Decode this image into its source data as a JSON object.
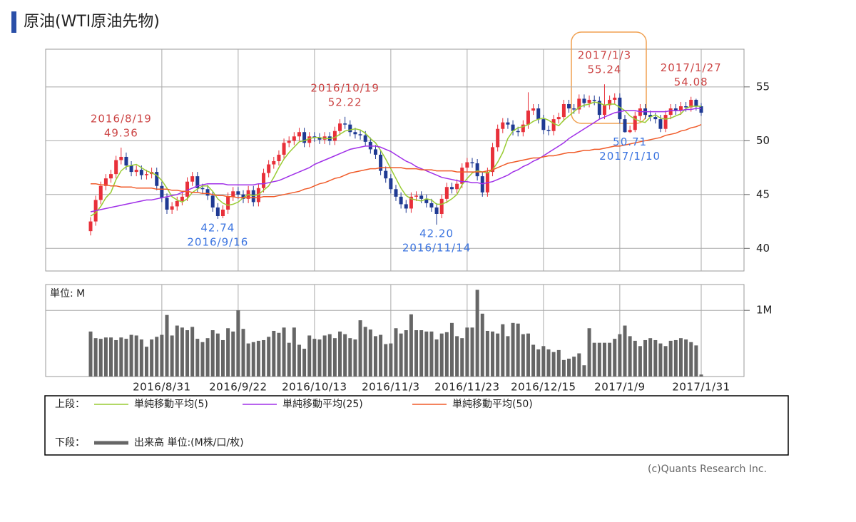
{
  "title": "原油(WTI原油先物)",
  "chart_data": [
    {
      "type": "candlestick",
      "up_color": "#e8303a",
      "down_color": "#1f3a93",
      "ylim": [
        37.9,
        58.5
      ],
      "yticks": [
        40,
        45,
        50,
        55
      ],
      "grid": true,
      "open": [
        41.6,
        42.5,
        44.5,
        45.8,
        46.5,
        46.9,
        48.2,
        48.5,
        47.7,
        47.1,
        47.3,
        46.8,
        46.9,
        47.1,
        45.8,
        44.7,
        43.6,
        43.9,
        44.4,
        44.8,
        46.2,
        46.7,
        45.6,
        45.5,
        44.9,
        43.8,
        43.0,
        43.6,
        44.8,
        45.3,
        45.0,
        44.6,
        45.4,
        44.3,
        45.6,
        47.0,
        47.8,
        48.1,
        48.7,
        49.8,
        50.0,
        50.4,
        50.8,
        49.8,
        50.4,
        50.3,
        50.1,
        50.4,
        50.0,
        50.9,
        51.6,
        51.5,
        50.8,
        50.6,
        50.5,
        49.9,
        49.2,
        48.7,
        47.2,
        46.5,
        45.5,
        44.8,
        44.1,
        43.7,
        44.8,
        44.9,
        44.6,
        44.2,
        43.8,
        43.2,
        44.6,
        45.7,
        45.5,
        46.0,
        47.5,
        48.0,
        47.9,
        46.7,
        45.2,
        47.1,
        49.4,
        51.1,
        51.7,
        51.5,
        50.9,
        50.8,
        51.5,
        52.8,
        53.0,
        52.0,
        51.0,
        50.9,
        52.0,
        52.2,
        53.4,
        53.0,
        52.9,
        53.9,
        53.5,
        53.8,
        53.7,
        52.4,
        53.3,
        53.8,
        54.0,
        52.0,
        50.8,
        51.0,
        52.3,
        53.0,
        52.4,
        52.2,
        52.0,
        51.1,
        52.4,
        53.0,
        52.8,
        53.2,
        53.1,
        53.8,
        53.2
      ],
      "high": [
        42.9,
        44.9,
        46.2,
        46.9,
        47.3,
        48.6,
        49.36,
        48.9,
        48.1,
        47.7,
        47.7,
        47.3,
        47.5,
        47.5,
        46.2,
        45.1,
        44.3,
        44.8,
        45.2,
        46.6,
        47.1,
        47.1,
        46.0,
        45.9,
        45.3,
        44.2,
        44.0,
        45.2,
        45.7,
        45.7,
        45.4,
        45.8,
        45.8,
        46.0,
        47.4,
        48.2,
        48.5,
        49.1,
        50.2,
        50.4,
        50.8,
        51.2,
        51.2,
        50.8,
        50.8,
        50.7,
        50.8,
        50.8,
        51.3,
        52.0,
        52.22,
        51.9,
        51.2,
        51.0,
        50.9,
        50.3,
        49.6,
        49.1,
        47.6,
        46.9,
        45.9,
        45.2,
        44.5,
        45.2,
        45.3,
        45.3,
        45.0,
        44.6,
        44.2,
        45.0,
        46.1,
        46.1,
        46.4,
        47.9,
        48.4,
        48.4,
        48.3,
        47.1,
        47.5,
        49.8,
        51.5,
        52.1,
        52.1,
        51.9,
        51.3,
        51.9,
        54.5,
        53.4,
        53.4,
        52.4,
        51.4,
        52.4,
        52.6,
        53.8,
        53.8,
        53.4,
        54.3,
        54.3,
        54.2,
        54.2,
        54.1,
        55.24,
        54.2,
        54.4,
        54.4,
        52.4,
        51.4,
        52.7,
        53.4,
        53.4,
        52.8,
        52.6,
        52.4,
        52.8,
        53.4,
        53.4,
        53.6,
        53.6,
        54.08,
        53.9,
        53.5
      ],
      "low": [
        41.2,
        42.1,
        44.1,
        45.4,
        46.1,
        46.5,
        47.8,
        47.3,
        46.7,
        46.7,
        46.4,
        46.4,
        46.5,
        45.4,
        44.3,
        43.2,
        43.2,
        43.5,
        44.0,
        44.4,
        45.8,
        45.2,
        45.1,
        44.5,
        43.4,
        42.74,
        42.8,
        43.2,
        44.4,
        44.6,
        44.2,
        44.2,
        43.9,
        43.9,
        45.2,
        46.6,
        47.4,
        47.7,
        48.3,
        49.4,
        49.6,
        50.0,
        49.4,
        49.4,
        49.9,
        49.7,
        49.7,
        49.6,
        49.6,
        50.5,
        51.1,
        50.4,
        50.2,
        50.1,
        49.5,
        48.8,
        48.3,
        46.8,
        46.1,
        45.1,
        44.4,
        43.7,
        43.3,
        43.3,
        44.4,
        44.2,
        43.8,
        43.4,
        42.2,
        42.8,
        44.2,
        45.1,
        45.1,
        45.6,
        47.1,
        47.5,
        46.3,
        44.8,
        44.8,
        46.7,
        49.0,
        50.7,
        51.1,
        50.5,
        50.4,
        50.4,
        51.1,
        52.4,
        51.6,
        50.6,
        50.5,
        50.5,
        51.6,
        51.8,
        52.6,
        52.5,
        52.5,
        53.1,
        53.1,
        53.3,
        52.0,
        52.0,
        52.9,
        53.4,
        51.6,
        50.75,
        50.71,
        50.8,
        51.9,
        52.0,
        51.8,
        51.6,
        50.8,
        50.8,
        52.0,
        52.4,
        52.4,
        52.7,
        52.7,
        52.8,
        52.3
      ],
      "close": [
        42.5,
        44.5,
        45.8,
        46.5,
        46.9,
        48.2,
        48.5,
        47.7,
        47.1,
        47.3,
        46.8,
        46.9,
        47.1,
        45.8,
        44.7,
        43.6,
        43.9,
        44.4,
        44.8,
        46.2,
        46.7,
        45.6,
        45.5,
        44.9,
        43.8,
        43.0,
        43.6,
        44.8,
        45.3,
        45.0,
        44.6,
        45.4,
        44.3,
        45.6,
        47.0,
        47.8,
        48.1,
        48.7,
        49.8,
        50.0,
        50.4,
        50.8,
        49.8,
        50.4,
        50.3,
        50.1,
        50.4,
        50.0,
        50.9,
        51.6,
        51.5,
        50.8,
        50.6,
        50.5,
        49.9,
        49.2,
        48.7,
        47.2,
        46.5,
        45.5,
        44.8,
        44.1,
        43.7,
        44.8,
        44.9,
        44.6,
        44.2,
        43.8,
        43.2,
        44.6,
        45.7,
        45.5,
        46.0,
        47.5,
        48.0,
        47.9,
        46.7,
        45.2,
        47.1,
        49.4,
        51.1,
        51.7,
        51.5,
        50.9,
        50.8,
        51.5,
        52.8,
        53.0,
        52.0,
        51.0,
        50.9,
        52.0,
        52.2,
        53.4,
        53.0,
        52.9,
        53.9,
        53.5,
        53.8,
        53.7,
        52.4,
        53.3,
        53.8,
        54.0,
        52.0,
        50.8,
        51.0,
        52.3,
        53.0,
        52.4,
        52.2,
        52.0,
        51.1,
        52.4,
        53.0,
        52.8,
        53.2,
        53.1,
        53.8,
        53.2,
        52.6
      ],
      "series": [
        {
          "name": "単純移動平均(5)",
          "color": "#99cc33",
          "values": [
            43.0,
            43.3,
            43.9,
            44.7,
            45.2,
            46.4,
            47.2,
            47.6,
            47.7,
            47.8,
            47.5,
            47.2,
            47.0,
            46.8,
            46.3,
            45.6,
            44.8,
            44.5,
            44.3,
            44.6,
            45.2,
            45.5,
            45.8,
            45.8,
            45.3,
            44.6,
            44.2,
            44.0,
            44.1,
            44.3,
            44.7,
            45.0,
            44.9,
            45.0,
            45.4,
            45.8,
            46.6,
            47.5,
            48.3,
            48.9,
            49.4,
            49.9,
            50.0,
            50.2,
            50.3,
            50.3,
            50.2,
            50.2,
            50.3,
            50.6,
            50.9,
            51.0,
            51.1,
            51.0,
            50.7,
            50.2,
            49.8,
            49.1,
            48.3,
            47.4,
            46.5,
            45.6,
            44.9,
            44.6,
            44.5,
            44.4,
            44.6,
            44.5,
            44.1,
            44.1,
            44.3,
            44.6,
            45.0,
            45.9,
            46.5,
            47.0,
            47.2,
            47.1,
            47.0,
            47.3,
            48.0,
            48.9,
            50.2,
            50.9,
            51.2,
            51.3,
            51.5,
            51.8,
            52.0,
            52.1,
            51.9,
            51.6,
            51.4,
            51.9,
            52.3,
            52.7,
            53.1,
            53.3,
            53.4,
            53.6,
            53.5,
            53.3,
            53.4,
            53.4,
            53.1,
            52.8,
            52.3,
            52.0,
            51.8,
            51.7,
            52.2,
            52.4,
            52.1,
            52.0,
            52.1,
            52.3,
            52.5,
            53.0,
            53.2,
            53.2,
            53.2
          ]
        },
        {
          "name": "単純移動平均(25)",
          "color": "#a030e8",
          "values": [
            43.4,
            43.5,
            43.6,
            43.7,
            43.8,
            43.9,
            44.0,
            44.1,
            44.2,
            44.3,
            44.4,
            44.5,
            44.5,
            44.6,
            44.7,
            44.8,
            44.9,
            45.0,
            45.2,
            45.4,
            45.6,
            45.8,
            45.9,
            46.0,
            46.0,
            46.0,
            46.0,
            45.9,
            45.9,
            45.9,
            45.9,
            45.9,
            45.9,
            46.0,
            46.0,
            46.1,
            46.2,
            46.3,
            46.5,
            46.7,
            46.9,
            47.1,
            47.3,
            47.5,
            47.8,
            48.0,
            48.2,
            48.4,
            48.6,
            48.8,
            49.0,
            49.2,
            49.3,
            49.4,
            49.5,
            49.5,
            49.5,
            49.4,
            49.2,
            49.0,
            48.7,
            48.4,
            48.1,
            47.9,
            47.6,
            47.4,
            47.2,
            47.0,
            46.8,
            46.6,
            46.5,
            46.4,
            46.3,
            46.2,
            46.2,
            46.1,
            46.1,
            46.0,
            46.1,
            46.2,
            46.4,
            46.6,
            46.8,
            47.1,
            47.3,
            47.6,
            47.8,
            48.1,
            48.3,
            48.6,
            48.9,
            49.2,
            49.5,
            49.8,
            50.2,
            50.5,
            50.8,
            51.1,
            51.4,
            51.7,
            52.0,
            52.2,
            52.4,
            52.6,
            52.7,
            52.8,
            52.8,
            52.8,
            52.7,
            52.7,
            52.7,
            52.7,
            52.7,
            52.7,
            52.8,
            52.8,
            52.8,
            52.9,
            52.9,
            53.0,
            53.0
          ]
        },
        {
          "name": "単純移動平均(50)",
          "color": "#f05a28",
          "values": [
            46.0,
            46.0,
            45.9,
            45.9,
            45.8,
            45.8,
            45.7,
            45.7,
            45.7,
            45.6,
            45.6,
            45.6,
            45.6,
            45.5,
            45.5,
            45.5,
            45.4,
            45.4,
            45.3,
            45.3,
            45.2,
            45.2,
            45.1,
            45.1,
            45.0,
            44.9,
            44.9,
            44.8,
            44.8,
            44.7,
            44.7,
            44.7,
            44.7,
            44.7,
            44.8,
            44.8,
            44.8,
            44.9,
            45.0,
            45.1,
            45.2,
            45.3,
            45.5,
            45.6,
            45.8,
            46.0,
            46.1,
            46.3,
            46.5,
            46.6,
            46.8,
            47.0,
            47.1,
            47.2,
            47.3,
            47.4,
            47.4,
            47.5,
            47.5,
            47.5,
            47.5,
            47.5,
            47.4,
            47.4,
            47.4,
            47.3,
            47.3,
            47.3,
            47.2,
            47.2,
            47.2,
            47.2,
            47.1,
            47.1,
            47.1,
            47.1,
            47.1,
            47.1,
            47.2,
            47.3,
            47.5,
            47.7,
            47.9,
            48.0,
            48.1,
            48.2,
            48.3,
            48.4,
            48.4,
            48.5,
            48.6,
            48.6,
            48.7,
            48.8,
            48.9,
            48.9,
            49.0,
            49.1,
            49.1,
            49.2,
            49.2,
            49.3,
            49.4,
            49.5,
            49.5,
            49.6,
            49.7,
            49.8,
            49.9,
            50.0,
            50.1,
            50.2,
            50.3,
            50.5,
            50.6,
            50.7,
            50.9,
            51.0,
            51.2,
            51.3,
            51.5
          ]
        }
      ],
      "annotations": [
        {
          "date": "2016/8/19",
          "value": 49.36,
          "color": "#cc4444"
        },
        {
          "date": "2016/9/16",
          "value": 42.74,
          "color": "#3b74e0"
        },
        {
          "date": "2016/10/19",
          "value": 52.22,
          "color": "#cc4444"
        },
        {
          "date": "2016/11/14",
          "value": 42.2,
          "value_label": "42.20",
          "color": "#3b74e0"
        },
        {
          "date": "2017/1/3",
          "value": 55.24,
          "color": "#cc4444"
        },
        {
          "date": "2017/1/10",
          "value": 50.71,
          "color": "#3b74e0"
        },
        {
          "date": "2017/1/27",
          "value": 54.08,
          "color": "#cc4444"
        }
      ]
    },
    {
      "type": "bar",
      "unit_label": "単位: M",
      "color": "#666666",
      "legend_label": "出来高 単位:(M株/口/枚)",
      "ylim": [
        0,
        1.39
      ],
      "yticks": [
        {
          "value": 1,
          "label": "1M"
        }
      ],
      "grid": true,
      "categories": [
        null,
        null,
        null,
        null,
        null,
        null,
        null,
        null,
        null,
        null,
        null,
        null,
        null,
        null,
        "2016/8/31",
        null,
        null,
        null,
        null,
        null,
        null,
        null,
        null,
        null,
        null,
        null,
        null,
        null,
        null,
        "2016/9/22",
        null,
        null,
        null,
        null,
        null,
        null,
        null,
        null,
        null,
        null,
        null,
        null,
        null,
        null,
        "2016/10/13",
        null,
        null,
        null,
        null,
        null,
        null,
        null,
        null,
        null,
        null,
        null,
        null,
        null,
        null,
        "2016/11/3",
        null,
        null,
        null,
        null,
        null,
        null,
        null,
        null,
        null,
        null,
        null,
        null,
        null,
        null,
        "2016/11/23",
        null,
        null,
        null,
        null,
        null,
        null,
        null,
        null,
        null,
        null,
        null,
        null,
        null,
        null,
        "2016/12/15",
        null,
        null,
        null,
        null,
        null,
        null,
        null,
        null,
        null,
        null,
        null,
        null,
        null,
        null,
        "2017/1/9",
        null,
        null,
        null,
        null,
        null,
        null,
        null,
        null,
        null,
        null,
        null,
        null,
        null,
        null,
        null,
        "2017/1/31"
      ],
      "values": [
        0.68,
        0.58,
        0.57,
        0.59,
        0.59,
        0.55,
        0.59,
        0.57,
        0.63,
        0.62,
        0.56,
        0.45,
        0.56,
        0.6,
        0.63,
        0.93,
        0.62,
        0.77,
        0.74,
        0.7,
        0.75,
        0.57,
        0.52,
        0.58,
        0.7,
        0.65,
        0.55,
        0.73,
        0.68,
        1.0,
        0.72,
        0.5,
        0.52,
        0.54,
        0.55,
        0.6,
        0.69,
        0.66,
        0.74,
        0.51,
        0.74,
        0.48,
        0.42,
        0.62,
        0.57,
        0.56,
        0.62,
        0.64,
        0.58,
        0.68,
        0.64,
        0.58,
        0.56,
        0.85,
        0.75,
        0.71,
        0.61,
        0.63,
        0.49,
        0.5,
        0.73,
        0.65,
        0.7,
        0.94,
        0.7,
        0.7,
        0.68,
        0.68,
        0.56,
        0.65,
        0.67,
        0.81,
        0.61,
        0.58,
        0.74,
        0.74,
        1.31,
        0.95,
        0.69,
        0.68,
        0.65,
        0.79,
        0.61,
        0.81,
        0.8,
        0.64,
        0.65,
        0.48,
        0.41,
        0.46,
        0.41,
        0.37,
        0.4,
        0.25,
        0.27,
        0.3,
        0.35,
        0.17,
        0.73,
        0.51,
        0.51,
        0.51,
        0.51,
        0.57,
        0.64,
        0.77,
        0.61,
        0.54,
        0.46,
        0.55,
        0.58,
        0.55,
        0.5,
        0.46,
        0.54,
        0.55,
        0.58,
        0.56,
        0.52,
        0.47,
        0.03
      ]
    }
  ],
  "legend": {
    "upper_label": "上段：",
    "lower_label": "下段："
  },
  "copyright": "(c)Quants Research Inc."
}
